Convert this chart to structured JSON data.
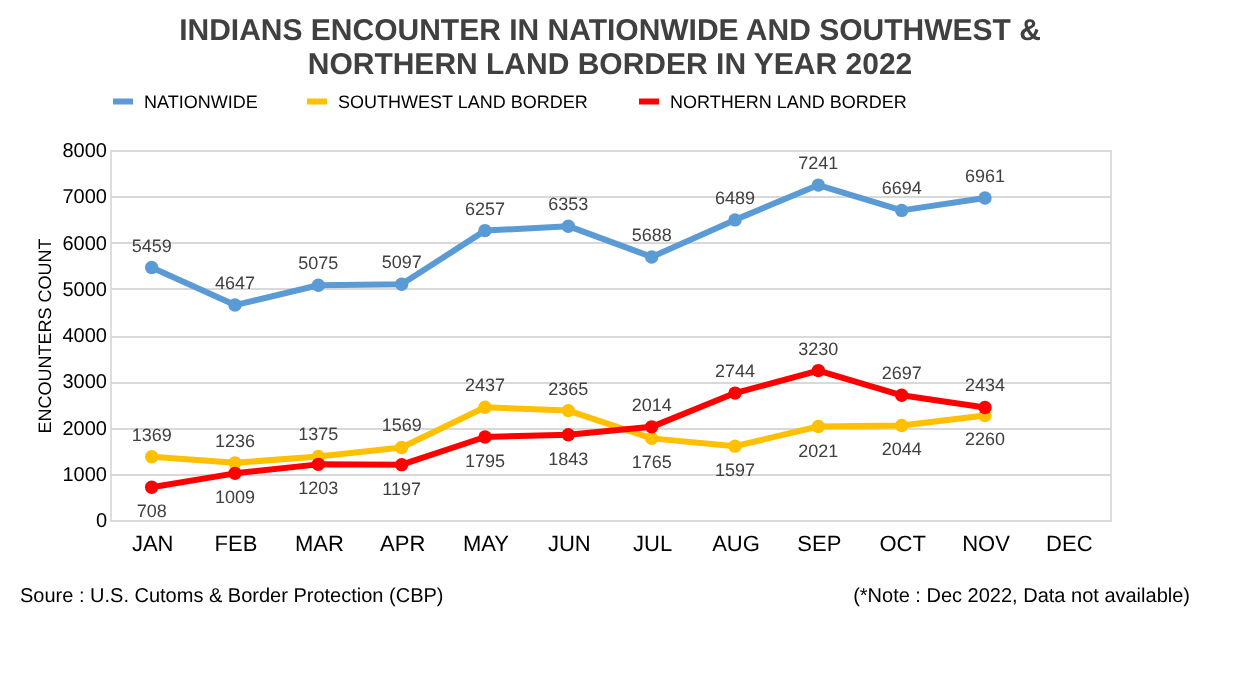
{
  "chart_data": {
    "type": "line",
    "title": "INDIANS ENCOUNTER IN NATIONWIDE AND SOUTHWEST & NORTHERN LAND BORDER IN YEAR 2022",
    "ylabel": "ENCOUNTERS COUNT",
    "categories": [
      "JAN",
      "FEB",
      "MAR",
      "APR",
      "MAY",
      "JUN",
      "JUL",
      "AUG",
      "SEP",
      "OCT",
      "NOV",
      "DEC"
    ],
    "series": [
      {
        "name": "NATIONWIDE",
        "color": "#5b9bd5",
        "values": [
          5459,
          4647,
          5075,
          5097,
          6257,
          6353,
          5688,
          6489,
          7241,
          6694,
          6961,
          null
        ]
      },
      {
        "name": "SOUTHWEST LAND BORDER",
        "color": "#ffc000",
        "values": [
          1369,
          1236,
          1375,
          1569,
          2437,
          2365,
          1765,
          1597,
          2021,
          2044,
          2260,
          null
        ]
      },
      {
        "name": "NORTHERN LAND BORDER",
        "color": "#ff0000",
        "values": [
          708,
          1009,
          1203,
          1197,
          1795,
          1843,
          2014,
          2744,
          3230,
          2697,
          2434,
          null
        ]
      }
    ],
    "ylim": [
      0,
      8000
    ],
    "yticks": [
      0,
      1000,
      2000,
      3000,
      4000,
      5000,
      6000,
      7000,
      8000
    ],
    "grid": "y",
    "legend": "top",
    "marker": "circle",
    "line_style": "solid",
    "data_labels": true,
    "annotations": [
      "Soure : U.S. Cutoms & Border Protection (CBP)",
      "(*Note : Dec 2022, Data not available)"
    ]
  }
}
